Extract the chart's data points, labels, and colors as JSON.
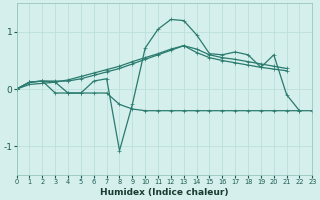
{
  "xlabel": "Humidex (Indice chaleur)",
  "bg_color": "#d4efec",
  "grid_color": "#b8ddd8",
  "line_color": "#2a7a6e",
  "x": [
    0,
    1,
    2,
    3,
    4,
    5,
    6,
    7,
    8,
    9,
    10,
    11,
    12,
    13,
    14,
    15,
    16,
    17,
    18,
    19,
    20,
    21,
    22,
    23
  ],
  "line_top": [
    null,
    null,
    null,
    null,
    null,
    null,
    null,
    null,
    null,
    null,
    1.05,
    1.2,
    1.25,
    1.22,
    1.08,
    null,
    null,
    null,
    null,
    null,
    null,
    null,
    null,
    null
  ],
  "line_wave": [
    0.0,
    0.12,
    0.14,
    0.12,
    -0.07,
    -0.07,
    0.14,
    0.18,
    -1.08,
    -0.27,
    0.72,
    1.05,
    1.22,
    1.2,
    0.95,
    0.62,
    0.6,
    0.65,
    0.6,
    0.38,
    0.6,
    -0.1,
    -0.38,
    null
  ],
  "line_mid1": [
    0.0,
    0.12,
    0.14,
    0.14,
    0.14,
    0.18,
    0.24,
    0.3,
    0.36,
    0.44,
    0.52,
    0.6,
    0.68,
    0.76,
    0.7,
    0.6,
    0.55,
    0.52,
    0.48,
    0.44,
    0.4,
    0.36,
    null,
    null
  ],
  "line_mid2": [
    0.0,
    0.08,
    0.1,
    0.12,
    0.16,
    0.22,
    0.28,
    0.34,
    0.4,
    0.48,
    0.55,
    0.62,
    0.7,
    0.76,
    0.64,
    0.55,
    0.5,
    0.46,
    0.42,
    0.38,
    0.35,
    0.32,
    null,
    null
  ],
  "line_bot": [
    0.0,
    0.12,
    0.14,
    -0.07,
    -0.07,
    -0.07,
    -0.07,
    -0.07,
    -0.27,
    -0.35,
    -0.38,
    -0.38,
    -0.38,
    -0.38,
    -0.38,
    -0.38,
    -0.38,
    -0.38,
    -0.38,
    -0.38,
    -0.38,
    -0.38,
    -0.38,
    -0.38
  ],
  "xticks": [
    0,
    1,
    2,
    3,
    4,
    5,
    6,
    7,
    8,
    9,
    10,
    11,
    12,
    13,
    14,
    15,
    16,
    17,
    18,
    19,
    20,
    21,
    22,
    23
  ],
  "yticks": [
    -1,
    0,
    1
  ],
  "ylim": [
    -1.5,
    1.5
  ],
  "xlim": [
    0,
    23
  ]
}
